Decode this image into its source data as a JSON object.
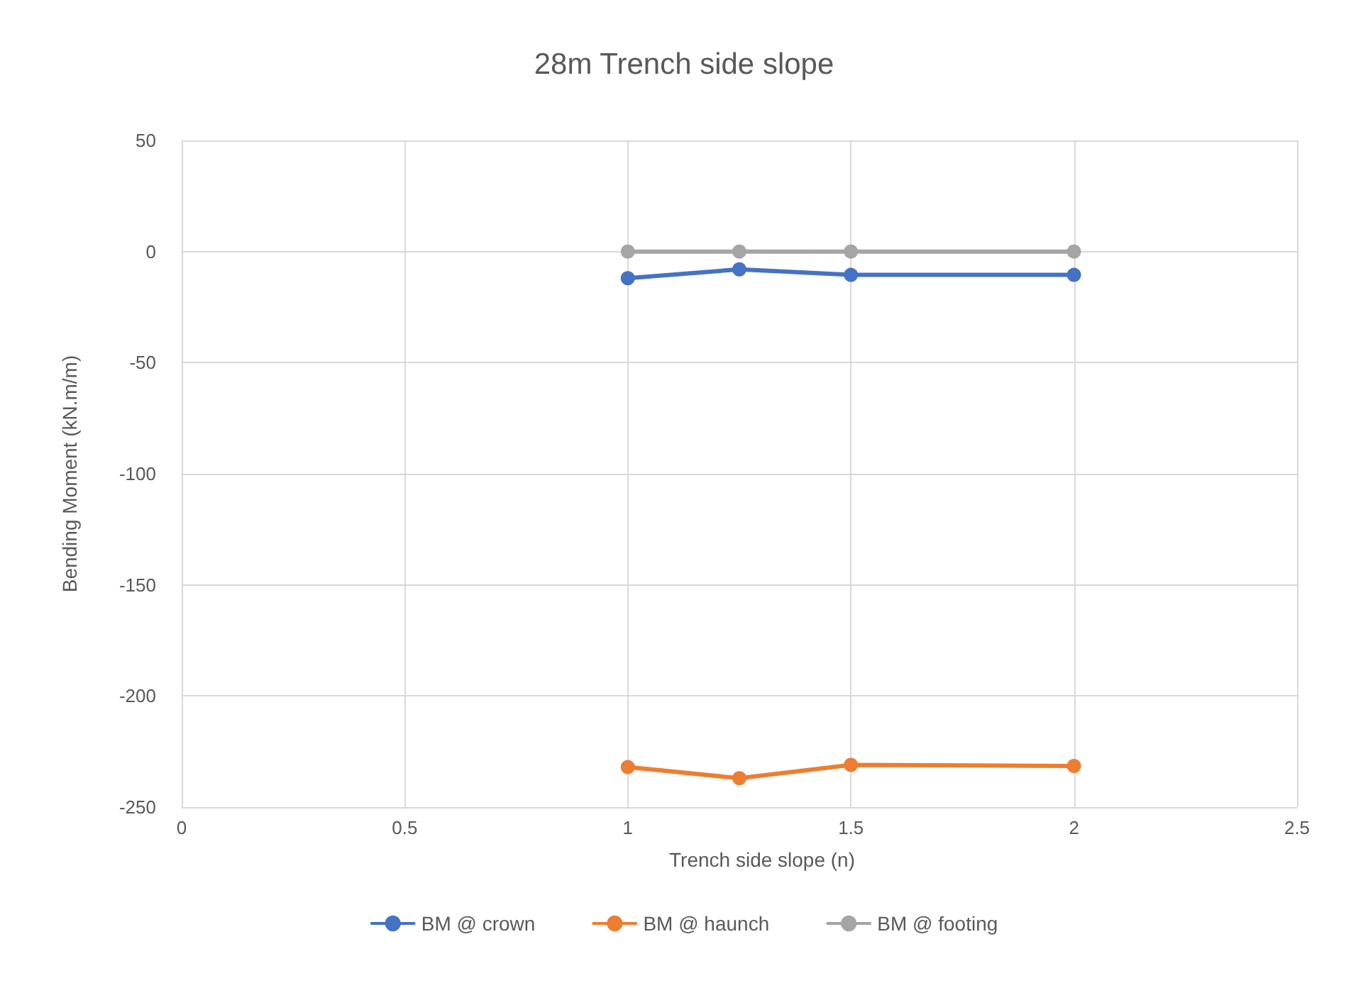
{
  "chart_data": {
    "type": "line",
    "title": "28m Trench side slope",
    "xlabel": "Trench side slope (n)",
    "ylabel": "Bending Moment (kN.m/m)",
    "x": [
      1,
      1.25,
      1.5,
      2
    ],
    "series": [
      {
        "name": "BM @ crown",
        "color": "#4472c4",
        "values": [
          -12,
          -8,
          -10.5,
          -10.5
        ]
      },
      {
        "name": "BM @ haunch",
        "color": "#ed7d31",
        "values": [
          -232,
          -237,
          -231,
          -231.5
        ]
      },
      {
        "name": "BM @ footing",
        "color": "#a5a5a5",
        "values": [
          0,
          0,
          0,
          0
        ]
      }
    ],
    "xlim": [
      0,
      2.5
    ],
    "xticks": [
      0,
      0.5,
      1,
      1.5,
      2,
      2.5
    ],
    "ylim": [
      -250,
      50
    ],
    "yticks": [
      -250,
      -200,
      -150,
      -100,
      -50,
      0,
      50
    ],
    "grid": true,
    "legend": "bottom",
    "marker": "circle",
    "line_style": "solid"
  }
}
